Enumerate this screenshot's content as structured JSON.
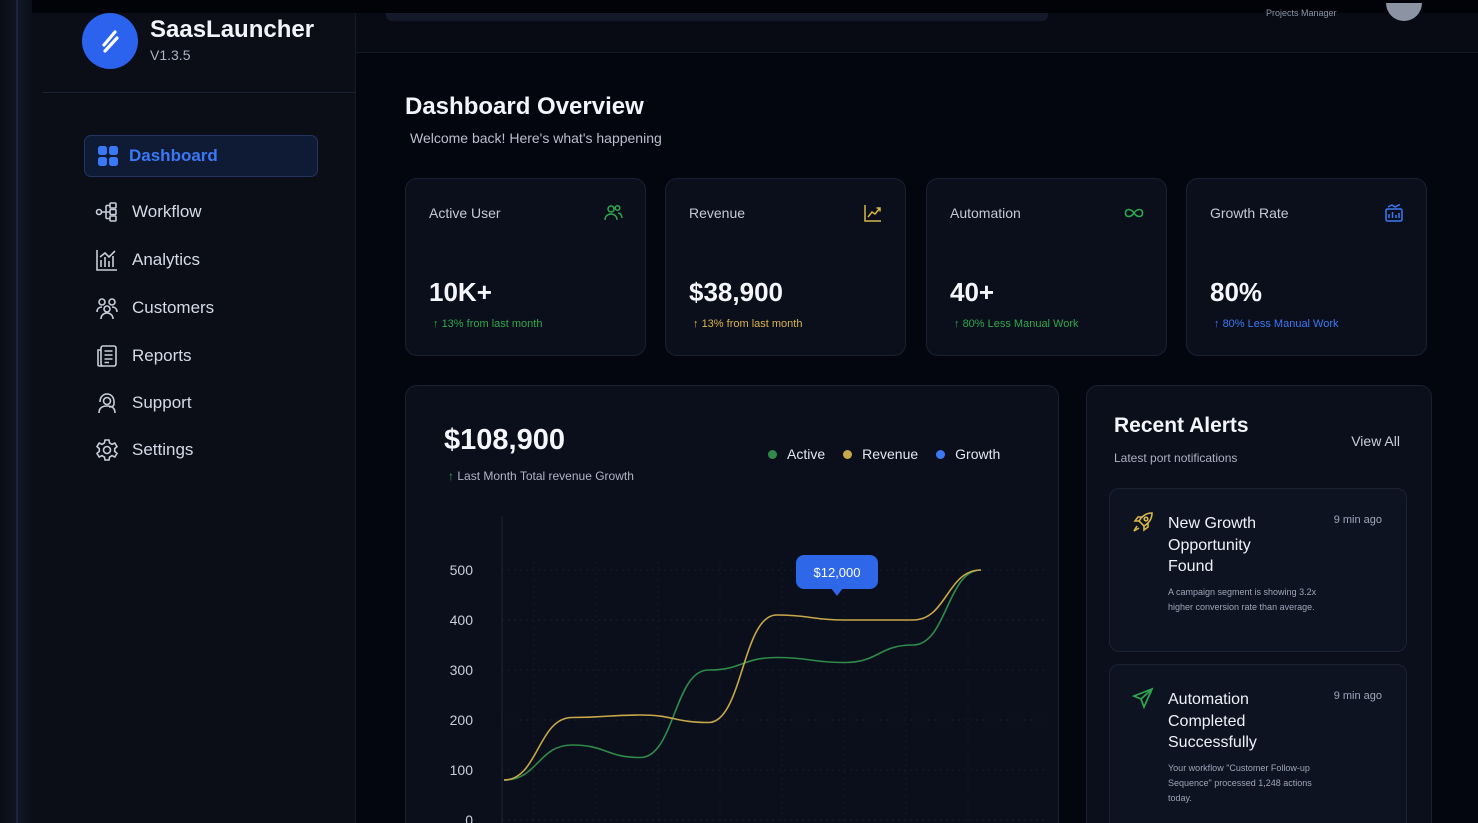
{
  "brand": {
    "name": "SaasLauncher",
    "version": "V1.3.5"
  },
  "header": {
    "user_role": "Projects Manager"
  },
  "sidebar": {
    "items": [
      {
        "label": "Dashboard",
        "icon": "dashboard-grid-icon",
        "active": true
      },
      {
        "label": "Workflow",
        "icon": "workflow-icon"
      },
      {
        "label": "Analytics",
        "icon": "analytics-icon"
      },
      {
        "label": "Customers",
        "icon": "customers-icon"
      },
      {
        "label": "Reports",
        "icon": "reports-icon"
      },
      {
        "label": "Support",
        "icon": "support-icon"
      },
      {
        "label": "Settings",
        "icon": "settings-icon"
      }
    ]
  },
  "page": {
    "title": "Dashboard Overview",
    "subtitle": "Welcome back! Here's what's happening"
  },
  "stats": [
    {
      "label": "Active User",
      "value": "10K+",
      "note": "13% from last month",
      "note_color": "#2fa84f",
      "icon": "users-icon",
      "icon_color": "#2fa84f"
    },
    {
      "label": "Revenue",
      "value": "$38,900",
      "note": "13% from last month",
      "note_color": "#d8b64a",
      "icon": "trending-up-icon",
      "icon_color": "#d8b64a"
    },
    {
      "label": "Automation",
      "value": "40+",
      "note": "80% Less Manual Work",
      "note_color": "#2fa84f",
      "icon": "infinity-icon",
      "icon_color": "#2fa84f"
    },
    {
      "label": "Growth Rate",
      "value": "80%",
      "note": "80% Less Manual Work",
      "note_color": "#3b78f5",
      "icon": "growth-icon",
      "icon_color": "#3b78f5"
    }
  ],
  "chart_panel": {
    "total": "$108,900",
    "note": "Last Month Total revenue Growth"
  },
  "chart_data": {
    "type": "line",
    "y_ticks": [
      "500",
      "400",
      "300",
      "200",
      "100",
      "0"
    ],
    "ylim": [
      0,
      500
    ],
    "grid": true,
    "legend": [
      "Active",
      "Revenue",
      "Growth"
    ],
    "legend_placement": "top-right",
    "colors": {
      "Active": "#2e8b49",
      "Revenue": "#c9a84a",
      "Growth": "#3b78f5"
    },
    "tooltip": {
      "label": "$12,000",
      "color": "#2e67e8"
    },
    "series": [
      {
        "name": "Active",
        "x": [
          0,
          1,
          2,
          3,
          4,
          5,
          6,
          7
        ],
        "values": [
          80,
          150,
          125,
          300,
          325,
          315,
          350,
          500
        ]
      },
      {
        "name": "Revenue",
        "x": [
          0,
          1,
          2,
          3,
          4,
          5,
          6,
          7
        ],
        "values": [
          80,
          205,
          210,
          195,
          410,
          400,
          400,
          500
        ]
      }
    ]
  },
  "alerts": {
    "title": "Recent Alerts",
    "subtitle": "Latest port notifications",
    "view_all": "View All",
    "items": [
      {
        "title": "New Growth Opportunity Found",
        "time": "9 min ago",
        "desc": "A campaign segment is showing 3.2x higher conversion rate than average.",
        "icon": "rocket-icon",
        "icon_color": "#d8b64a"
      },
      {
        "title": "Automation Completed Successfully",
        "time": "9 min ago",
        "desc": "Your workflow \"Customer Follow-up Sequence\" processed 1,248 actions today.",
        "icon": "send-icon",
        "icon_color": "#2fa84f"
      }
    ]
  }
}
